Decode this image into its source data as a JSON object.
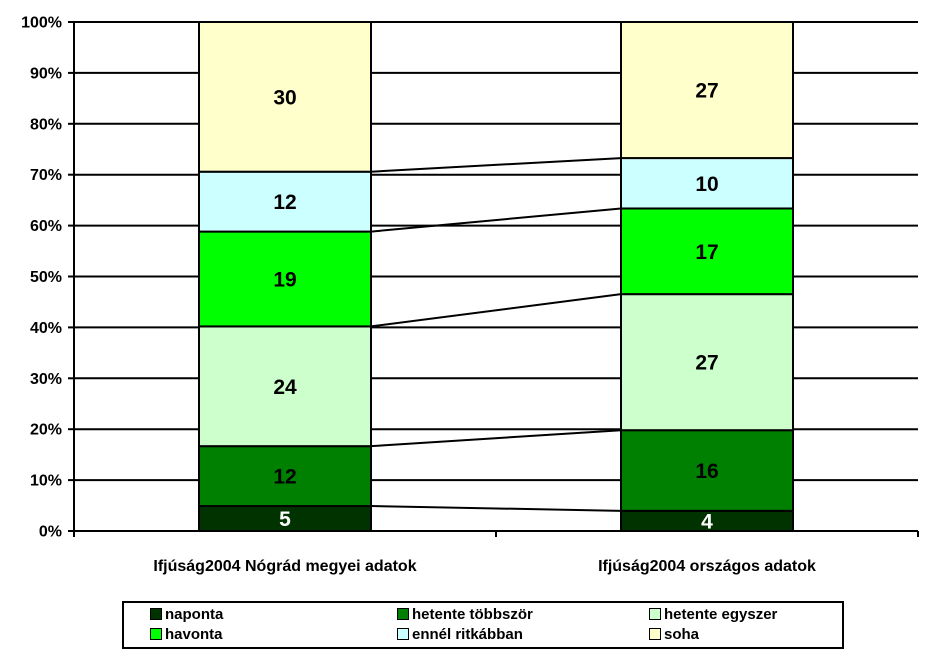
{
  "chart_data": {
    "type": "bar",
    "stacked": "percent",
    "categories": [
      "Ifjúság2004 Nógrád megyei adatok",
      "Ifjúság2004 országos adatok"
    ],
    "series": [
      {
        "name": "naponta",
        "values": [
          5,
          4
        ],
        "color": "#003300",
        "label_color": "#ffffff"
      },
      {
        "name": "hetente többször",
        "values": [
          12,
          16
        ],
        "color": "#008000",
        "label_color": "#000000"
      },
      {
        "name": "hetente egyszer",
        "values": [
          24,
          27
        ],
        "color": "#ccffcc",
        "label_color": "#000000"
      },
      {
        "name": "havonta",
        "values": [
          19,
          17
        ],
        "color": "#00ff00",
        "label_color": "#000000"
      },
      {
        "name": "ennél ritkábban",
        "values": [
          12,
          10
        ],
        "color": "#ccffff",
        "label_color": "#000000"
      },
      {
        "name": "soha",
        "values": [
          30,
          27
        ],
        "color": "#ffffcc",
        "label_color": "#000000"
      }
    ],
    "y_ticks": [
      "0%",
      "10%",
      "20%",
      "30%",
      "40%",
      "50%",
      "60%",
      "70%",
      "80%",
      "90%",
      "100%"
    ],
    "ylim": [
      0,
      100
    ],
    "grid": true,
    "series_lines": true,
    "legend": "bottom"
  }
}
